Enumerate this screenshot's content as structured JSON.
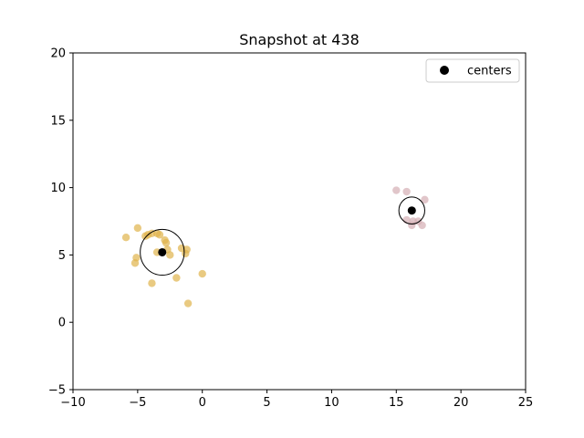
{
  "chart_data": {
    "type": "scatter",
    "title": "Snapshot at 438",
    "xlabel": "",
    "ylabel": "",
    "xlim": [
      -10,
      25
    ],
    "ylim": [
      -5,
      20
    ],
    "xticks": [
      -10,
      -5,
      0,
      5,
      10,
      15,
      20,
      25
    ],
    "yticks": [
      -5,
      0,
      5,
      10,
      15,
      20
    ],
    "xtick_labels": [
      "−10",
      "−5",
      "0",
      "5",
      "10",
      "15",
      "20",
      "25"
    ],
    "ytick_labels": [
      "−5",
      "0",
      "5",
      "10",
      "15",
      "20"
    ],
    "grid": false,
    "legend": {
      "placement": "top-right",
      "entries": [
        "centers"
      ]
    },
    "clusters": [
      {
        "color": "#e0b44c",
        "points": [
          [
            -5.0,
            7.0
          ],
          [
            -5.9,
            6.3
          ],
          [
            -4.4,
            6.4
          ],
          [
            -4.2,
            6.5
          ],
          [
            -3.9,
            6.6
          ],
          [
            -3.5,
            6.6
          ],
          [
            -3.3,
            6.5
          ],
          [
            -2.9,
            6.1
          ],
          [
            -2.8,
            5.9
          ],
          [
            -2.7,
            5.4
          ],
          [
            -3.5,
            5.2
          ],
          [
            -2.5,
            5.0
          ],
          [
            -1.6,
            5.5
          ],
          [
            -1.2,
            5.4
          ],
          [
            -1.3,
            5.1
          ],
          [
            -5.1,
            4.8
          ],
          [
            -5.2,
            4.4
          ],
          [
            -2.0,
            3.3
          ],
          [
            0.0,
            3.6
          ],
          [
            -3.9,
            2.9
          ],
          [
            -1.1,
            1.4
          ]
        ]
      },
      {
        "color": "#d4aeb4",
        "points": [
          [
            15.0,
            9.8
          ],
          [
            15.8,
            9.7
          ],
          [
            17.2,
            9.1
          ],
          [
            15.8,
            7.6
          ],
          [
            16.3,
            7.5
          ],
          [
            16.2,
            7.2
          ],
          [
            16.7,
            7.5
          ],
          [
            17.0,
            7.2
          ]
        ]
      }
    ],
    "centers": [
      {
        "x": -3.1,
        "y": 5.2,
        "radius": 1.7
      },
      {
        "x": 16.2,
        "y": 8.3,
        "radius": 1.0
      }
    ],
    "centers_label": "centers",
    "center_color": "#000000"
  }
}
